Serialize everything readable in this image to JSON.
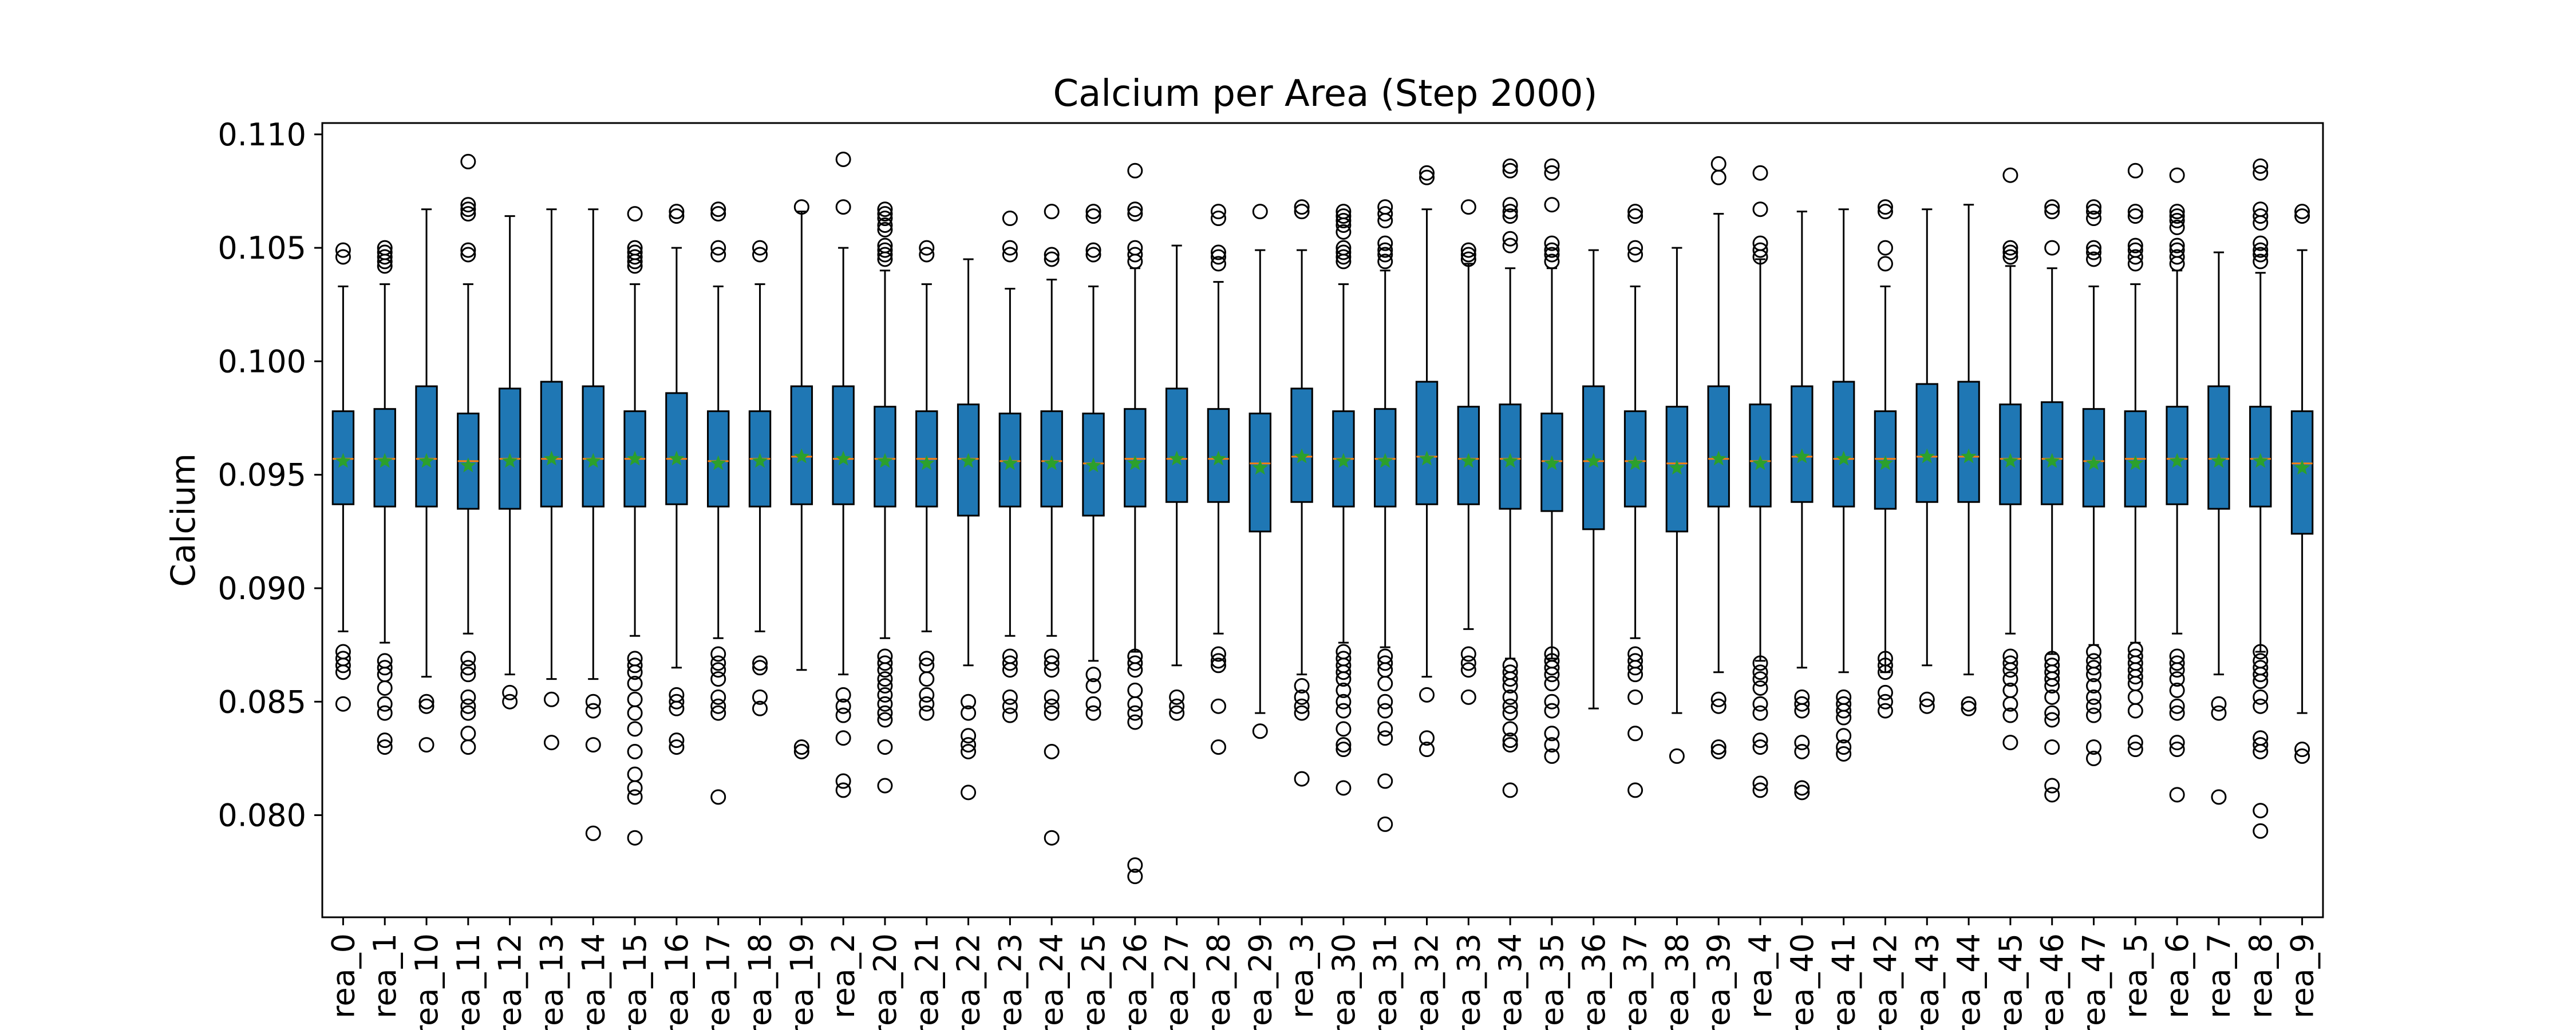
{
  "chart_data": {
    "type": "box",
    "title": "Calcium per Area (Step 2000)",
    "ylabel": "Calcium",
    "xlabel": "",
    "ylim": [
      0.0755,
      0.1105
    ],
    "yticks": [
      "0.080",
      "0.085",
      "0.090",
      "0.095",
      "0.100",
      "0.105",
      "0.110"
    ],
    "grid": false,
    "legend": "none",
    "colors": {
      "box_fill": "#1f77b4",
      "median": "#ff7f0e",
      "mean_marker": "#2ca02c",
      "line": "#000000"
    },
    "categories": [
      "rea_0",
      "rea_1",
      "rea_10",
      "rea_11",
      "rea_12",
      "rea_13",
      "rea_14",
      "rea_15",
      "rea_16",
      "rea_17",
      "rea_18",
      "rea_19",
      "rea_2",
      "rea_20",
      "rea_21",
      "rea_22",
      "rea_23",
      "rea_24",
      "rea_25",
      "rea_26",
      "rea_27",
      "rea_28",
      "rea_29",
      "rea_3",
      "rea_30",
      "rea_31",
      "rea_32",
      "rea_33",
      "rea_34",
      "rea_35",
      "rea_36",
      "rea_37",
      "rea_38",
      "rea_39",
      "rea_4",
      "rea_40",
      "rea_41",
      "rea_42",
      "rea_43",
      "rea_44",
      "rea_45",
      "rea_46",
      "rea_47",
      "rea_5",
      "rea_6",
      "rea_7",
      "rea_8",
      "rea_9"
    ],
    "boxes": [
      {
        "whislo": 0.0881,
        "q1": 0.0937,
        "median": 0.0957,
        "q3": 0.0978,
        "whishi": 0.1033,
        "mean": 0.0956,
        "fliers": [
          0.1049,
          0.1046,
          0.0872,
          0.0869,
          0.0866,
          0.0863,
          0.0849
        ]
      },
      {
        "whislo": 0.0876,
        "q1": 0.0936,
        "median": 0.0957,
        "q3": 0.0979,
        "whishi": 0.1034,
        "mean": 0.0956,
        "fliers": [
          0.105,
          0.1048,
          0.1046,
          0.1044,
          0.1042,
          0.0868,
          0.0865,
          0.0862,
          0.0856,
          0.0849,
          0.0845,
          0.0833,
          0.083
        ]
      },
      {
        "whislo": 0.0861,
        "q1": 0.0936,
        "median": 0.0957,
        "q3": 0.0989,
        "whishi": 0.1067,
        "mean": 0.0956,
        "fliers": [
          0.085,
          0.0848,
          0.0831
        ]
      },
      {
        "whislo": 0.088,
        "q1": 0.0935,
        "median": 0.0956,
        "q3": 0.0977,
        "whishi": 0.1034,
        "mean": 0.0954,
        "fliers": [
          0.1088,
          0.1069,
          0.1067,
          0.1065,
          0.1049,
          0.1047,
          0.0869,
          0.0865,
          0.0862,
          0.0852,
          0.0848,
          0.0845,
          0.0836,
          0.083
        ]
      },
      {
        "whislo": 0.0862,
        "q1": 0.0935,
        "median": 0.0957,
        "q3": 0.0988,
        "whishi": 0.1064,
        "mean": 0.0956,
        "fliers": [
          0.0854,
          0.085
        ]
      },
      {
        "whislo": 0.086,
        "q1": 0.0936,
        "median": 0.0957,
        "q3": 0.0991,
        "whishi": 0.1067,
        "mean": 0.0957,
        "fliers": [
          0.0851,
          0.0832
        ]
      },
      {
        "whislo": 0.086,
        "q1": 0.0936,
        "median": 0.0957,
        "q3": 0.0989,
        "whishi": 0.1067,
        "mean": 0.0956,
        "fliers": [
          0.085,
          0.0846,
          0.0831,
          0.0792
        ]
      },
      {
        "whislo": 0.0879,
        "q1": 0.0936,
        "median": 0.0957,
        "q3": 0.0978,
        "whishi": 0.1034,
        "mean": 0.0957,
        "fliers": [
          0.1065,
          0.105,
          0.1048,
          0.1046,
          0.1044,
          0.1042,
          0.0869,
          0.0866,
          0.0863,
          0.0858,
          0.0851,
          0.0845,
          0.0838,
          0.0828,
          0.0818,
          0.0812,
          0.0808,
          0.079
        ]
      },
      {
        "whislo": 0.0865,
        "q1": 0.0937,
        "median": 0.0957,
        "q3": 0.0986,
        "whishi": 0.105,
        "mean": 0.0957,
        "fliers": [
          0.1066,
          0.1064,
          0.0853,
          0.085,
          0.0847,
          0.0833,
          0.083
        ]
      },
      {
        "whislo": 0.0878,
        "q1": 0.0936,
        "median": 0.0956,
        "q3": 0.0978,
        "whishi": 0.1033,
        "mean": 0.0955,
        "fliers": [
          0.1067,
          0.1065,
          0.105,
          0.1047,
          0.0871,
          0.0867,
          0.0864,
          0.086,
          0.0852,
          0.0848,
          0.0845,
          0.0808
        ]
      },
      {
        "whislo": 0.0881,
        "q1": 0.0936,
        "median": 0.0957,
        "q3": 0.0978,
        "whishi": 0.1034,
        "mean": 0.0956,
        "fliers": [
          0.105,
          0.1047,
          0.0867,
          0.0865,
          0.0852,
          0.0847
        ]
      },
      {
        "whislo": 0.0864,
        "q1": 0.0937,
        "median": 0.0958,
        "q3": 0.0989,
        "whishi": 0.1066,
        "mean": 0.0958,
        "fliers": [
          0.1068,
          0.083,
          0.0828
        ]
      },
      {
        "whislo": 0.0862,
        "q1": 0.0937,
        "median": 0.0957,
        "q3": 0.0989,
        "whishi": 0.105,
        "mean": 0.0957,
        "fliers": [
          0.1089,
          0.1068,
          0.0853,
          0.0848,
          0.0844,
          0.0834,
          0.0815,
          0.0811
        ]
      },
      {
        "whislo": 0.0878,
        "q1": 0.0936,
        "median": 0.0957,
        "q3": 0.098,
        "whishi": 0.104,
        "mean": 0.0956,
        "fliers": [
          0.1067,
          0.1065,
          0.1063,
          0.106,
          0.1058,
          0.1051,
          0.1049,
          0.1047,
          0.1045,
          0.087,
          0.0867,
          0.0864,
          0.086,
          0.0857,
          0.0853,
          0.0849,
          0.0845,
          0.0842,
          0.083,
          0.0813
        ]
      },
      {
        "whislo": 0.0881,
        "q1": 0.0936,
        "median": 0.0957,
        "q3": 0.0978,
        "whishi": 0.1034,
        "mean": 0.0955,
        "fliers": [
          0.105,
          0.1047,
          0.0869,
          0.0866,
          0.086,
          0.0853,
          0.0849,
          0.0845
        ]
      },
      {
        "whislo": 0.0866,
        "q1": 0.0932,
        "median": 0.0957,
        "q3": 0.0981,
        "whishi": 0.1045,
        "mean": 0.0956,
        "fliers": [
          0.085,
          0.0845,
          0.0835,
          0.0831,
          0.0828,
          0.081
        ]
      },
      {
        "whislo": 0.0879,
        "q1": 0.0936,
        "median": 0.0956,
        "q3": 0.0977,
        "whishi": 0.1032,
        "mean": 0.0955,
        "fliers": [
          0.1063,
          0.105,
          0.1047,
          0.087,
          0.0867,
          0.0864,
          0.0852,
          0.0848,
          0.0844
        ]
      },
      {
        "whislo": 0.0879,
        "q1": 0.0936,
        "median": 0.0956,
        "q3": 0.0978,
        "whishi": 0.1036,
        "mean": 0.0955,
        "fliers": [
          0.1066,
          0.1047,
          0.1045,
          0.087,
          0.0867,
          0.0864,
          0.0852,
          0.0848,
          0.0845,
          0.0828,
          0.079
        ]
      },
      {
        "whislo": 0.0868,
        "q1": 0.0932,
        "median": 0.0955,
        "q3": 0.0977,
        "whishi": 0.1033,
        "mean": 0.0954,
        "fliers": [
          0.1066,
          0.1064,
          0.1049,
          0.1047,
          0.0862,
          0.0857,
          0.0849,
          0.0845
        ]
      },
      {
        "whislo": 0.0872,
        "q1": 0.0936,
        "median": 0.0957,
        "q3": 0.0979,
        "whishi": 0.1041,
        "mean": 0.0955,
        "fliers": [
          0.1084,
          0.1067,
          0.1065,
          0.105,
          0.1047,
          0.1044,
          0.087,
          0.0867,
          0.0864,
          0.0855,
          0.0849,
          0.0845,
          0.0841,
          0.0778,
          0.0773
        ]
      },
      {
        "whislo": 0.0866,
        "q1": 0.0938,
        "median": 0.0957,
        "q3": 0.0988,
        "whishi": 0.1051,
        "mean": 0.0957,
        "fliers": [
          0.0852,
          0.0848,
          0.0845
        ]
      },
      {
        "whislo": 0.088,
        "q1": 0.0938,
        "median": 0.0957,
        "q3": 0.0979,
        "whishi": 0.1035,
        "mean": 0.0957,
        "fliers": [
          0.1066,
          0.1063,
          0.1048,
          0.1046,
          0.1043,
          0.0871,
          0.0868,
          0.0866,
          0.0848,
          0.083
        ]
      },
      {
        "whislo": 0.0845,
        "q1": 0.0925,
        "median": 0.0955,
        "q3": 0.0977,
        "whishi": 0.1049,
        "mean": 0.0953,
        "fliers": [
          0.1066,
          0.0837
        ]
      },
      {
        "whislo": 0.0862,
        "q1": 0.0938,
        "median": 0.0958,
        "q3": 0.0988,
        "whishi": 0.1049,
        "mean": 0.0958,
        "fliers": [
          0.1068,
          0.1066,
          0.0857,
          0.0852,
          0.0848,
          0.0845,
          0.0816
        ]
      },
      {
        "whislo": 0.0876,
        "q1": 0.0936,
        "median": 0.0957,
        "q3": 0.0978,
        "whishi": 0.1034,
        "mean": 0.0956,
        "fliers": [
          0.1066,
          0.1064,
          0.1062,
          0.106,
          0.1057,
          0.105,
          0.1048,
          0.1046,
          0.1044,
          0.0872,
          0.0869,
          0.0866,
          0.0863,
          0.086,
          0.0855,
          0.085,
          0.0846,
          0.0838,
          0.0831,
          0.0829,
          0.0812
        ]
      },
      {
        "whislo": 0.0874,
        "q1": 0.0936,
        "median": 0.0957,
        "q3": 0.0979,
        "whishi": 0.104,
        "mean": 0.0956,
        "fliers": [
          0.1068,
          0.1065,
          0.1062,
          0.1052,
          0.1049,
          0.1047,
          0.1044,
          0.087,
          0.0867,
          0.0864,
          0.0858,
          0.085,
          0.0846,
          0.0838,
          0.0834,
          0.0815,
          0.0796
        ]
      },
      {
        "whislo": 0.0861,
        "q1": 0.0937,
        "median": 0.0958,
        "q3": 0.0991,
        "whishi": 0.1067,
        "mean": 0.0957,
        "fliers": [
          0.1083,
          0.1081,
          0.0853,
          0.0834,
          0.0829
        ]
      },
      {
        "whislo": 0.0882,
        "q1": 0.0937,
        "median": 0.0957,
        "q3": 0.098,
        "whishi": 0.1043,
        "mean": 0.0956,
        "fliers": [
          0.1068,
          0.1049,
          0.1047,
          0.1045,
          0.0871,
          0.0867,
          0.0864,
          0.0852
        ]
      },
      {
        "whislo": 0.0869,
        "q1": 0.0935,
        "median": 0.0957,
        "q3": 0.0981,
        "whishi": 0.1041,
        "mean": 0.0956,
        "fliers": [
          0.1086,
          0.1084,
          0.1069,
          0.1066,
          0.1064,
          0.1054,
          0.1051,
          0.0866,
          0.0863,
          0.086,
          0.0857,
          0.0852,
          0.0848,
          0.0845,
          0.0838,
          0.0833,
          0.0831,
          0.0811
        ]
      },
      {
        "whislo": 0.0869,
        "q1": 0.0934,
        "median": 0.0956,
        "q3": 0.0977,
        "whishi": 0.1041,
        "mean": 0.0955,
        "fliers": [
          0.1086,
          0.1083,
          0.1069,
          0.1052,
          0.1049,
          0.1047,
          0.1044,
          0.0871,
          0.0868,
          0.0865,
          0.0862,
          0.0858,
          0.085,
          0.0846,
          0.0836,
          0.0831,
          0.0826
        ]
      },
      {
        "whislo": 0.0847,
        "q1": 0.0926,
        "median": 0.0956,
        "q3": 0.0989,
        "whishi": 0.1049,
        "mean": 0.0956,
        "fliers": []
      },
      {
        "whislo": 0.0878,
        "q1": 0.0936,
        "median": 0.0956,
        "q3": 0.0978,
        "whishi": 0.1033,
        "mean": 0.0955,
        "fliers": [
          0.1066,
          0.1064,
          0.105,
          0.1047,
          0.0871,
          0.0868,
          0.0865,
          0.0862,
          0.0852,
          0.0836,
          0.0811
        ]
      },
      {
        "whislo": 0.0845,
        "q1": 0.0925,
        "median": 0.0955,
        "q3": 0.098,
        "whishi": 0.105,
        "mean": 0.0953,
        "fliers": [
          0.0826
        ]
      },
      {
        "whislo": 0.0863,
        "q1": 0.0936,
        "median": 0.0957,
        "q3": 0.0989,
        "whishi": 0.1065,
        "mean": 0.0957,
        "fliers": [
          0.1087,
          0.1081,
          0.0851,
          0.0848,
          0.083,
          0.0828
        ]
      },
      {
        "whislo": 0.0868,
        "q1": 0.0936,
        "median": 0.0956,
        "q3": 0.0981,
        "whishi": 0.1045,
        "mean": 0.0955,
        "fliers": [
          0.1083,
          0.1067,
          0.1052,
          0.1049,
          0.1046,
          0.0867,
          0.0863,
          0.086,
          0.0856,
          0.0849,
          0.0845,
          0.0833,
          0.083,
          0.0814,
          0.0811
        ]
      },
      {
        "whislo": 0.0865,
        "q1": 0.0938,
        "median": 0.0958,
        "q3": 0.0989,
        "whishi": 0.1066,
        "mean": 0.0958,
        "fliers": [
          0.0852,
          0.0849,
          0.0846,
          0.0832,
          0.0828,
          0.0812,
          0.081
        ]
      },
      {
        "whislo": 0.0863,
        "q1": 0.0936,
        "median": 0.0957,
        "q3": 0.0991,
        "whishi": 0.1067,
        "mean": 0.0957,
        "fliers": [
          0.0852,
          0.0849,
          0.0846,
          0.0843,
          0.0835,
          0.083,
          0.0827
        ]
      },
      {
        "whislo": 0.0863,
        "q1": 0.0935,
        "median": 0.0957,
        "q3": 0.0978,
        "whishi": 0.1033,
        "mean": 0.0955,
        "fliers": [
          0.1068,
          0.1066,
          0.105,
          0.1043,
          0.0869,
          0.0866,
          0.0863,
          0.0854,
          0.085,
          0.0846
        ]
      },
      {
        "whislo": 0.0866,
        "q1": 0.0938,
        "median": 0.0958,
        "q3": 0.099,
        "whishi": 0.1067,
        "mean": 0.0958,
        "fliers": [
          0.0851,
          0.0848
        ]
      },
      {
        "whislo": 0.0862,
        "q1": 0.0938,
        "median": 0.0958,
        "q3": 0.0991,
        "whishi": 0.1069,
        "mean": 0.0958,
        "fliers": [
          0.0849,
          0.0847
        ]
      },
      {
        "whislo": 0.088,
        "q1": 0.0937,
        "median": 0.0957,
        "q3": 0.0981,
        "whishi": 0.1042,
        "mean": 0.0956,
        "fliers": [
          0.1082,
          0.105,
          0.1048,
          0.1046,
          0.087,
          0.0867,
          0.0864,
          0.086,
          0.0855,
          0.0849,
          0.0844,
          0.0832
        ]
      },
      {
        "whislo": 0.0871,
        "q1": 0.0937,
        "median": 0.0957,
        "q3": 0.0982,
        "whishi": 0.1041,
        "mean": 0.0956,
        "fliers": [
          0.1068,
          0.1066,
          0.105,
          0.0869,
          0.0866,
          0.0863,
          0.086,
          0.0857,
          0.0852,
          0.0845,
          0.0842,
          0.083,
          0.0813,
          0.0809
        ]
      },
      {
        "whislo": 0.0875,
        "q1": 0.0936,
        "median": 0.0956,
        "q3": 0.0979,
        "whishi": 0.1033,
        "mean": 0.0955,
        "fliers": [
          0.1068,
          0.1066,
          0.1063,
          0.105,
          0.1048,
          0.1045,
          0.0872,
          0.0868,
          0.0865,
          0.0862,
          0.0857,
          0.0852,
          0.0848,
          0.0844,
          0.083,
          0.0825
        ]
      },
      {
        "whislo": 0.0876,
        "q1": 0.0936,
        "median": 0.0957,
        "q3": 0.0978,
        "whishi": 0.1034,
        "mean": 0.0955,
        "fliers": [
          0.1084,
          0.1066,
          0.1064,
          0.1051,
          0.1049,
          0.1046,
          0.1043,
          0.0873,
          0.087,
          0.0867,
          0.0864,
          0.0861,
          0.0858,
          0.0852,
          0.0846,
          0.0832,
          0.0829
        ]
      },
      {
        "whislo": 0.088,
        "q1": 0.0937,
        "median": 0.0957,
        "q3": 0.098,
        "whishi": 0.104,
        "mean": 0.0956,
        "fliers": [
          0.1082,
          0.1066,
          0.1064,
          0.1062,
          0.1059,
          0.1051,
          0.1049,
          0.1046,
          0.1043,
          0.087,
          0.0867,
          0.0864,
          0.086,
          0.0855,
          0.0848,
          0.0845,
          0.0832,
          0.0829,
          0.0809
        ]
      },
      {
        "whislo": 0.0862,
        "q1": 0.0935,
        "median": 0.0957,
        "q3": 0.0989,
        "whishi": 0.1048,
        "mean": 0.0956,
        "fliers": [
          0.0849,
          0.0845,
          0.0808
        ]
      },
      {
        "whislo": 0.0872,
        "q1": 0.0936,
        "median": 0.0957,
        "q3": 0.098,
        "whishi": 0.1039,
        "mean": 0.0956,
        "fliers": [
          0.1086,
          0.1083,
          0.1067,
          0.1064,
          0.1061,
          0.1052,
          0.1049,
          0.1047,
          0.1044,
          0.0872,
          0.0868,
          0.0865,
          0.0862,
          0.0859,
          0.0852,
          0.0848,
          0.0834,
          0.0831,
          0.0828,
          0.0802,
          0.0793
        ]
      },
      {
        "whislo": 0.0845,
        "q1": 0.0924,
        "median": 0.0955,
        "q3": 0.0978,
        "whishi": 0.1049,
        "mean": 0.0953,
        "fliers": [
          0.1066,
          0.1064,
          0.0829,
          0.0826
        ]
      }
    ]
  }
}
